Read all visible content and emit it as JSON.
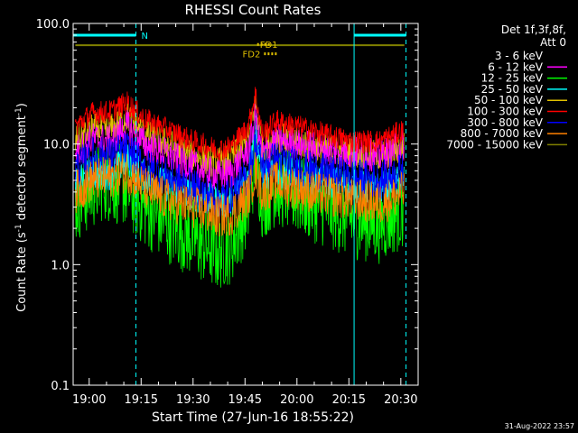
{
  "chart_data": {
    "type": "line",
    "title": "RHESSI Count Rates",
    "xlabel": "Start Time (27-Jun-16 18:55:22)",
    "ylabel": "Count Rate (s⁻¹ detector segment⁻¹)",
    "ylabel_parts": [
      "Count Rate (s",
      "-1",
      " detector segment",
      "-1",
      ")"
    ],
    "yscale": "log",
    "ylim": [
      0.1,
      100.0
    ],
    "yticks": [
      {
        "value": 0.1,
        "label": "0.1"
      },
      {
        "value": 1.0,
        "label": "1.0"
      },
      {
        "value": 10.0,
        "label": "10.0"
      },
      {
        "value": 100.0,
        "label": "100.0"
      }
    ],
    "xlim_minutes": [
      1135.37,
      1235.0
    ],
    "xticks": [
      {
        "minute": 1140,
        "label": "19:00"
      },
      {
        "minute": 1155,
        "label": "19:15"
      },
      {
        "minute": 1170,
        "label": "19:30"
      },
      {
        "minute": 1185,
        "label": "19:45"
      },
      {
        "minute": 1200,
        "label": "20:00"
      },
      {
        "minute": 1215,
        "label": "20:15"
      },
      {
        "minute": 1230,
        "label": "20:30"
      }
    ],
    "legend_header": [
      "Det 1f,3f,8f,",
      "Att 0"
    ],
    "legend_position": "right",
    "timestamp": "31-Aug-2022 23:57",
    "series": [
      {
        "name": "3 - 6 keV",
        "color": "#000000",
        "keypoints": [
          [
            1136,
            4.2
          ],
          [
            1144,
            6.0
          ],
          [
            1150,
            5.2
          ],
          [
            1156,
            3.5
          ],
          [
            1163,
            2.2
          ],
          [
            1171,
            1.4
          ],
          [
            1176,
            0.95
          ],
          [
            1180,
            0.8
          ],
          [
            1183,
            1.4
          ],
          [
            1186,
            3.5
          ],
          [
            1188,
            8.5
          ],
          [
            1190,
            4.0
          ],
          [
            1194,
            5.2
          ],
          [
            1200,
            4.8
          ],
          [
            1208,
            4.0
          ],
          [
            1216,
            3.5
          ],
          [
            1224,
            3.0
          ],
          [
            1231,
            3.8
          ]
        ],
        "noise": 0.3
      },
      {
        "name": "6 - 12 keV",
        "color": "#ff00ff",
        "keypoints": [
          [
            1136,
            8.5
          ],
          [
            1141,
            11.0
          ],
          [
            1146,
            10.5
          ],
          [
            1151,
            14.0
          ],
          [
            1156,
            10.0
          ],
          [
            1163,
            8.0
          ],
          [
            1170,
            6.5
          ],
          [
            1177,
            5.5
          ],
          [
            1181,
            5.8
          ],
          [
            1186,
            9.0
          ],
          [
            1188,
            17.0
          ],
          [
            1190,
            8.0
          ],
          [
            1194,
            11.0
          ],
          [
            1200,
            10.0
          ],
          [
            1208,
            9.0
          ],
          [
            1216,
            8.5
          ],
          [
            1224,
            8.0
          ],
          [
            1231,
            10.0
          ]
        ],
        "noise": 0.14
      },
      {
        "name": "12 - 25 keV",
        "color": "#00ff00",
        "keypoints": [
          [
            1136,
            3.3
          ],
          [
            1144,
            5.0
          ],
          [
            1150,
            4.5
          ],
          [
            1156,
            3.0
          ],
          [
            1163,
            2.2
          ],
          [
            1171,
            1.6
          ],
          [
            1177,
            1.3
          ],
          [
            1181,
            1.5
          ],
          [
            1186,
            3.0
          ],
          [
            1188,
            8.0
          ],
          [
            1190,
            3.5
          ],
          [
            1194,
            4.5
          ],
          [
            1200,
            3.8
          ],
          [
            1208,
            3.0
          ],
          [
            1216,
            2.4
          ],
          [
            1224,
            2.2
          ],
          [
            1231,
            3.0
          ]
        ],
        "noise": 0.34
      },
      {
        "name": "25 - 50 keV",
        "color": "#00ffff",
        "keypoints": [
          [
            1136,
            4.5
          ],
          [
            1141,
            5.8
          ],
          [
            1146,
            5.7
          ],
          [
            1151,
            7.5
          ],
          [
            1156,
            5.3
          ],
          [
            1163,
            4.5
          ],
          [
            1170,
            3.8
          ],
          [
            1177,
            3.3
          ],
          [
            1181,
            3.4
          ],
          [
            1186,
            6.0
          ],
          [
            1188,
            14.0
          ],
          [
            1190,
            5.5
          ],
          [
            1194,
            6.0
          ],
          [
            1200,
            5.5
          ],
          [
            1208,
            5.0
          ],
          [
            1216,
            4.5
          ],
          [
            1224,
            4.3
          ],
          [
            1231,
            5.0
          ]
        ],
        "noise": 0.14
      },
      {
        "name": "50 - 100 keV",
        "color": "#e0c000",
        "keypoints": [
          [
            1136,
            10.5
          ],
          [
            1141,
            13.5
          ],
          [
            1146,
            13.0
          ],
          [
            1151,
            17.0
          ],
          [
            1156,
            12.0
          ],
          [
            1163,
            10.0
          ],
          [
            1170,
            8.0
          ],
          [
            1177,
            7.0
          ],
          [
            1181,
            7.5
          ],
          [
            1186,
            11.0
          ],
          [
            1188,
            22.0
          ],
          [
            1190,
            9.5
          ],
          [
            1194,
            11.5
          ],
          [
            1200,
            10.5
          ],
          [
            1208,
            9.0
          ],
          [
            1216,
            8.5
          ],
          [
            1224,
            8.0
          ],
          [
            1231,
            9.5
          ]
        ],
        "noise": 0.13
      },
      {
        "name": "100 - 300 keV",
        "color": "#ff0000",
        "keypoints": [
          [
            1136,
            14.0
          ],
          [
            1141,
            18.0
          ],
          [
            1146,
            18.5
          ],
          [
            1151,
            22.0
          ],
          [
            1156,
            16.0
          ],
          [
            1163,
            13.0
          ],
          [
            1170,
            10.5
          ],
          [
            1177,
            9.0
          ],
          [
            1181,
            9.5
          ],
          [
            1186,
            14.0
          ],
          [
            1188,
            26.0
          ],
          [
            1190,
            12.0
          ],
          [
            1194,
            15.5
          ],
          [
            1200,
            14.0
          ],
          [
            1208,
            12.0
          ],
          [
            1216,
            10.5
          ],
          [
            1224,
            10.5
          ],
          [
            1231,
            13.0
          ]
        ],
        "noise": 0.1
      },
      {
        "name": "300 - 800 keV",
        "color": "#0000ff",
        "keypoints": [
          [
            1136,
            6.2
          ],
          [
            1141,
            8.0
          ],
          [
            1146,
            8.0
          ],
          [
            1151,
            9.0
          ],
          [
            1156,
            6.5
          ],
          [
            1163,
            5.3
          ],
          [
            1170,
            4.3
          ],
          [
            1177,
            3.5
          ],
          [
            1181,
            3.8
          ],
          [
            1186,
            5.5
          ],
          [
            1188,
            10.0
          ],
          [
            1190,
            6.5
          ],
          [
            1194,
            7.5
          ],
          [
            1200,
            6.5
          ],
          [
            1208,
            5.8
          ],
          [
            1216,
            5.3
          ],
          [
            1224,
            5.0
          ],
          [
            1231,
            6.0
          ]
        ],
        "noise": 0.16
      },
      {
        "name": "800 - 7000 keV",
        "color": "#ff8000",
        "keypoints": [
          [
            1136,
            4.0
          ],
          [
            1141,
            5.0
          ],
          [
            1146,
            5.3
          ],
          [
            1151,
            6.0
          ],
          [
            1156,
            4.3
          ],
          [
            1163,
            3.4
          ],
          [
            1170,
            3.0
          ],
          [
            1177,
            2.5
          ],
          [
            1181,
            2.6
          ],
          [
            1186,
            3.8
          ],
          [
            1188,
            6.0
          ],
          [
            1190,
            4.0
          ],
          [
            1194,
            4.8
          ],
          [
            1200,
            4.3
          ],
          [
            1208,
            3.8
          ],
          [
            1216,
            3.5
          ],
          [
            1224,
            3.2
          ],
          [
            1231,
            4.0
          ]
        ],
        "noise": 0.18
      },
      {
        "name": "7000 - 15000 keV",
        "color": "#808000",
        "keypoints": [
          [
            1136,
            66
          ],
          [
            1231,
            66
          ]
        ],
        "noise": 0.0
      }
    ],
    "annotations": [
      {
        "label": "N",
        "kind": "bar",
        "color": "#00ffff",
        "x_start": 1135.37,
        "x_end": 1153.5,
        "y": 80
      },
      {
        "label": "",
        "kind": "bar",
        "color": "#00ffff",
        "x_start": 1216.5,
        "x_end": 1231.5,
        "y": 80
      },
      {
        "label": "FD1",
        "kind": "dotted",
        "color": "#e0c000",
        "x_start": 1188.5,
        "x_end": 1192.5,
        "y": 67
      },
      {
        "label": "FD2",
        "kind": "dotted",
        "color": "#e0c000",
        "x_start": 1190.5,
        "x_end": 1194.5,
        "y": 56
      }
    ],
    "vlines": [
      {
        "minute": 1135.37,
        "color": "#00ffff",
        "style": "solid"
      },
      {
        "minute": 1153.5,
        "color": "#00ffff",
        "style": "dashed"
      },
      {
        "minute": 1216.5,
        "color": "#00ffff",
        "style": "solid"
      },
      {
        "minute": 1231.5,
        "color": "#00ffff",
        "style": "dashed"
      }
    ]
  }
}
